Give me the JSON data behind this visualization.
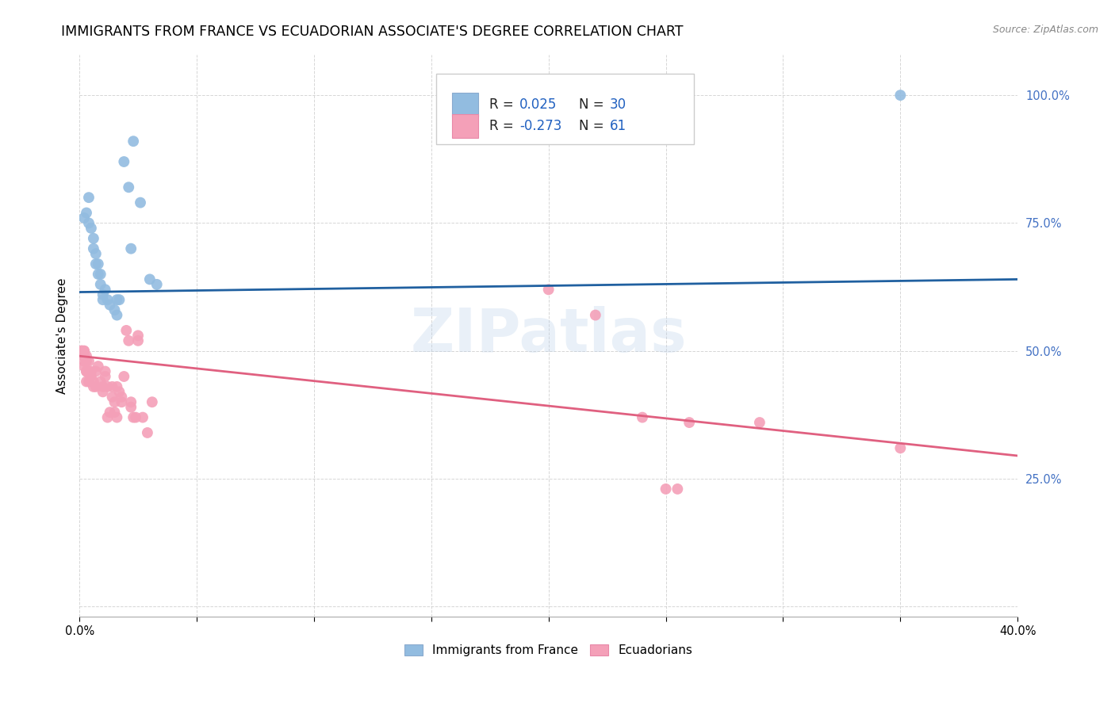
{
  "title": "IMMIGRANTS FROM FRANCE VS ECUADORIAN ASSOCIATE'S DEGREE CORRELATION CHART",
  "source": "Source: ZipAtlas.com",
  "ylabel": "Associate's Degree",
  "xlim": [
    0.0,
    0.4
  ],
  "ylim": [
    -0.02,
    1.08
  ],
  "yticks": [
    0.0,
    0.25,
    0.5,
    0.75,
    1.0
  ],
  "ytick_labels": [
    "",
    "25.0%",
    "50.0%",
    "75.0%",
    "100.0%"
  ],
  "xticks": [
    0.0,
    0.05,
    0.1,
    0.15,
    0.2,
    0.25,
    0.3,
    0.35,
    0.4
  ],
  "legend_label1": "Immigrants from France",
  "legend_label2": "Ecuadorians",
  "blue_color": "#92bce0",
  "pink_color": "#f4a0b8",
  "blue_line_color": "#2060a0",
  "pink_line_color": "#e06080",
  "watermark": "ZIPatlas",
  "blue_scatter": [
    [
      0.002,
      0.76
    ],
    [
      0.003,
      0.77
    ],
    [
      0.004,
      0.8
    ],
    [
      0.004,
      0.75
    ],
    [
      0.005,
      0.74
    ],
    [
      0.006,
      0.72
    ],
    [
      0.006,
      0.7
    ],
    [
      0.007,
      0.67
    ],
    [
      0.007,
      0.69
    ],
    [
      0.008,
      0.67
    ],
    [
      0.008,
      0.65
    ],
    [
      0.009,
      0.63
    ],
    [
      0.009,
      0.65
    ],
    [
      0.01,
      0.61
    ],
    [
      0.01,
      0.6
    ],
    [
      0.011,
      0.62
    ],
    [
      0.012,
      0.6
    ],
    [
      0.013,
      0.59
    ],
    [
      0.015,
      0.58
    ],
    [
      0.016,
      0.57
    ],
    [
      0.016,
      0.6
    ],
    [
      0.017,
      0.6
    ],
    [
      0.019,
      0.87
    ],
    [
      0.021,
      0.82
    ],
    [
      0.022,
      0.7
    ],
    [
      0.023,
      0.91
    ],
    [
      0.026,
      0.79
    ],
    [
      0.03,
      0.64
    ],
    [
      0.033,
      0.63
    ],
    [
      0.35,
      1.0
    ]
  ],
  "pink_scatter": [
    [
      0.001,
      0.5
    ],
    [
      0.001,
      0.5
    ],
    [
      0.001,
      0.5
    ],
    [
      0.002,
      0.5
    ],
    [
      0.002,
      0.5
    ],
    [
      0.002,
      0.49
    ],
    [
      0.002,
      0.49
    ],
    [
      0.002,
      0.48
    ],
    [
      0.002,
      0.47
    ],
    [
      0.003,
      0.49
    ],
    [
      0.003,
      0.48
    ],
    [
      0.003,
      0.46
    ],
    [
      0.003,
      0.46
    ],
    [
      0.003,
      0.44
    ],
    [
      0.004,
      0.48
    ],
    [
      0.004,
      0.46
    ],
    [
      0.004,
      0.44
    ],
    [
      0.005,
      0.46
    ],
    [
      0.005,
      0.45
    ],
    [
      0.006,
      0.44
    ],
    [
      0.006,
      0.43
    ],
    [
      0.007,
      0.46
    ],
    [
      0.007,
      0.43
    ],
    [
      0.008,
      0.47
    ],
    [
      0.009,
      0.44
    ],
    [
      0.01,
      0.43
    ],
    [
      0.01,
      0.42
    ],
    [
      0.011,
      0.46
    ],
    [
      0.011,
      0.45
    ],
    [
      0.012,
      0.43
    ],
    [
      0.012,
      0.37
    ],
    [
      0.013,
      0.38
    ],
    [
      0.014,
      0.43
    ],
    [
      0.014,
      0.41
    ],
    [
      0.015,
      0.4
    ],
    [
      0.015,
      0.38
    ],
    [
      0.016,
      0.37
    ],
    [
      0.016,
      0.43
    ],
    [
      0.017,
      0.42
    ],
    [
      0.018,
      0.41
    ],
    [
      0.018,
      0.4
    ],
    [
      0.019,
      0.45
    ],
    [
      0.02,
      0.54
    ],
    [
      0.021,
      0.52
    ],
    [
      0.022,
      0.39
    ],
    [
      0.022,
      0.4
    ],
    [
      0.023,
      0.37
    ],
    [
      0.024,
      0.37
    ],
    [
      0.025,
      0.53
    ],
    [
      0.025,
      0.52
    ],
    [
      0.027,
      0.37
    ],
    [
      0.029,
      0.34
    ],
    [
      0.031,
      0.4
    ],
    [
      0.2,
      0.62
    ],
    [
      0.22,
      0.57
    ],
    [
      0.24,
      0.37
    ],
    [
      0.25,
      0.23
    ],
    [
      0.255,
      0.23
    ],
    [
      0.26,
      0.36
    ],
    [
      0.29,
      0.36
    ],
    [
      0.35,
      0.31
    ]
  ],
  "blue_line_x": [
    0.0,
    0.4
  ],
  "blue_line_y": [
    0.615,
    0.64
  ],
  "pink_line_x": [
    0.0,
    0.4
  ],
  "pink_line_y": [
    0.49,
    0.295
  ],
  "background_color": "#ffffff",
  "grid_color": "#cccccc",
  "title_fontsize": 12.5,
  "axis_label_fontsize": 11,
  "tick_fontsize": 10.5,
  "right_tick_color": "#4472c4"
}
